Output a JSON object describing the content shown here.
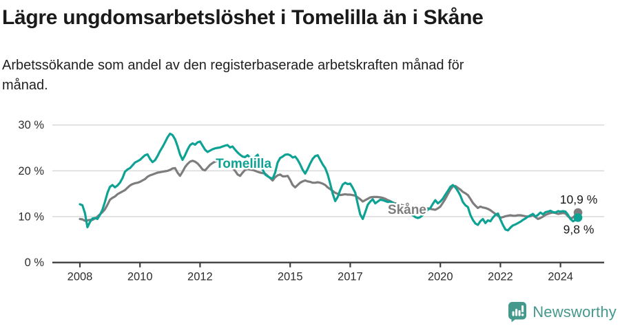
{
  "page": {
    "title": "Lägre ungdomsarbetslöshet i Tomelilla än i Skåne",
    "subtitle_line1": "Arbetssökande som andel av den registerbaserade arbetskraften månad för",
    "subtitle_line2": "månad."
  },
  "footer": {
    "brand": "Newsworthy",
    "brand_color": "#45988c",
    "logo_icon": "bar-chart-speech-bubble-icon"
  },
  "chart_data": {
    "type": "line",
    "title": "Lägre ungdomsarbetslöshet i Tomelilla än i Skåne",
    "subtitle": "Arbetssökande som andel av den registerbaserade arbetskraften månad för månad.",
    "unit": "%",
    "grid": "horizontal",
    "x_axis": {
      "ticks": [
        2008,
        2010,
        2012,
        2015,
        2017,
        2020,
        2022,
        2024
      ],
      "tick_labels": [
        "2008",
        "2010",
        "2012",
        "2015",
        "2017",
        "2020",
        "2022",
        "2024"
      ],
      "range": [
        2008.0,
        2024.583
      ]
    },
    "y_axis": {
      "ticks": [
        0,
        10,
        20,
        30
      ],
      "tick_labels": [
        "0 %",
        "10 %",
        "20 %",
        "30 %"
      ],
      "range": [
        0,
        32
      ],
      "grid_color": "#d9d9d9",
      "axis_color": "#3e3e3e"
    },
    "series": [
      {
        "name": "Skåne",
        "color": "#7d7d7d",
        "start_year": 2008,
        "frequency": "monthly",
        "label_anchor": {
          "year": 2018.25,
          "value": 10.6
        },
        "end_value": 10.9,
        "end_label": "10,9 %",
        "end_label_position": "above",
        "values": [
          9.5,
          9.4,
          9.1,
          9.2,
          9.3,
          9.3,
          9.6,
          10.0,
          10.5,
          11.0,
          11.6,
          12.6,
          13.7,
          14.1,
          14.4,
          14.9,
          15.2,
          15.5,
          15.8,
          16.3,
          16.8,
          17.1,
          17.3,
          17.4,
          17.6,
          17.9,
          18.2,
          18.7,
          19.0,
          19.2,
          19.4,
          19.6,
          19.7,
          19.8,
          19.9,
          20.0,
          20.2,
          20.5,
          20.6,
          19.6,
          18.9,
          19.8,
          20.8,
          21.5,
          22.0,
          22.2,
          22.0,
          21.6,
          21.0,
          20.3,
          20.1,
          20.7,
          21.3,
          21.7,
          22.0,
          22.2,
          22.4,
          22.5,
          22.1,
          21.7,
          21.3,
          20.6,
          20.0,
          19.2,
          18.9,
          19.6,
          20.2,
          20.4,
          20.3,
          20.2,
          20.0,
          19.8,
          19.6,
          19.5,
          19.4,
          18.9,
          18.4,
          17.9,
          18.6,
          19.0,
          19.2,
          18.8,
          18.8,
          18.9,
          18.0,
          16.9,
          16.4,
          16.9,
          17.4,
          17.7,
          17.9,
          17.7,
          17.6,
          17.4,
          17.4,
          17.5,
          17.4,
          17.2,
          16.9,
          16.4,
          16.0,
          15.6,
          15.2,
          15.0,
          14.7,
          14.8,
          14.9,
          14.8,
          14.8,
          14.7,
          14.6,
          14.2,
          13.8,
          13.3,
          13.6,
          13.9,
          14.2,
          14.3,
          14.3,
          14.3,
          14.2,
          14.1,
          13.9,
          13.6,
          13.4,
          13.1,
          12.9,
          12.8,
          12.6,
          12.5,
          12.4,
          12.3,
          12.2,
          12.1,
          12.1,
          12.0,
          11.9,
          11.9,
          11.8,
          11.8,
          11.7,
          11.6,
          11.5,
          11.8,
          12.2,
          13.0,
          13.9,
          14.9,
          15.9,
          16.6,
          16.7,
          16.3,
          15.9,
          15.4,
          15.1,
          14.7,
          13.9,
          13.0,
          12.4,
          11.9,
          12.2,
          12.0,
          11.9,
          11.7,
          11.4,
          11.0,
          10.6,
          10.2,
          9.8,
          9.9,
          10.1,
          10.2,
          10.3,
          10.2,
          10.2,
          10.3,
          10.3,
          10.2,
          10.1,
          10.0,
          10.1,
          10.3,
          9.9,
          9.5,
          9.7,
          10.0,
          10.4,
          10.6,
          10.8,
          10.9,
          10.8,
          10.6,
          10.7,
          10.8,
          10.7,
          10.1,
          9.6,
          9.8,
          10.4,
          10.9
        ]
      },
      {
        "name": "Tomelilla",
        "color": "#0ea295",
        "start_year": 2008,
        "frequency": "monthly",
        "label_anchor": {
          "year": 2012.52,
          "value": 20.65
        },
        "end_value": 9.8,
        "end_label": "9,8 %",
        "end_label_position": "below",
        "values": [
          12.7,
          12.5,
          10.8,
          7.7,
          8.8,
          9.6,
          9.7,
          9.5,
          10.4,
          11.5,
          13.2,
          15.2,
          16.5,
          16.9,
          16.4,
          16.8,
          17.4,
          18.4,
          19.8,
          20.3,
          20.6,
          21.2,
          21.8,
          22.1,
          22.4,
          22.9,
          23.4,
          23.6,
          22.6,
          21.9,
          22.3,
          23.2,
          24.3,
          25.2,
          26.2,
          27.3,
          28.1,
          27.8,
          26.9,
          25.4,
          23.6,
          22.4,
          23.4,
          24.6,
          25.6,
          26.0,
          25.7,
          26.2,
          26.4,
          25.5,
          24.6,
          24.1,
          24.4,
          24.7,
          24.9,
          25.0,
          25.1,
          25.3,
          25.5,
          25.6,
          25.1,
          25.3,
          24.6,
          24.0,
          23.5,
          23.1,
          23.0,
          23.4,
          22.9,
          22.7,
          23.0,
          23.5,
          22.0,
          20.3,
          19.2,
          18.8,
          18.5,
          18.3,
          19.6,
          21.8,
          22.8,
          23.1,
          23.5,
          23.6,
          23.4,
          22.9,
          23.1,
          22.4,
          21.4,
          20.2,
          19.4,
          20.4,
          21.6,
          22.6,
          23.2,
          23.4,
          22.4,
          21.4,
          20.6,
          19.2,
          17.2,
          15.0,
          13.4,
          14.3,
          15.8,
          17.0,
          17.4,
          17.1,
          17.2,
          16.3,
          15.2,
          12.8,
          10.5,
          9.5,
          11.0,
          12.6,
          13.3,
          13.8,
          12.9,
          13.3,
          13.7,
          13.6,
          13.4,
          13.2,
          13.3,
          13.0,
          12.7,
          12.4,
          12.1,
          11.8,
          11.4,
          11.0,
          10.7,
          10.3,
          9.9,
          9.7,
          9.9,
          10.4,
          11.0,
          11.5,
          11.9,
          12.8,
          13.6,
          12.9,
          13.3,
          13.9,
          14.8,
          15.6,
          16.5,
          16.9,
          16.4,
          15.6,
          14.6,
          13.2,
          12.5,
          12.1,
          10.4,
          9.3,
          8.5,
          8.2,
          9.0,
          9.5,
          8.6,
          9.2,
          9.0,
          9.8,
          10.4,
          10.7,
          9.4,
          8.2,
          7.2,
          7.0,
          7.6,
          8.1,
          8.3,
          8.6,
          8.9,
          9.3,
          9.6,
          10.0,
          10.3,
          10.6,
          10.0,
          10.4,
          10.9,
          10.5,
          11.0,
          11.1,
          11.3,
          11.0,
          10.9,
          11.2,
          11.1,
          11.2,
          11.1,
          10.4,
          9.5,
          9.0,
          9.3,
          9.8
        ]
      }
    ]
  }
}
